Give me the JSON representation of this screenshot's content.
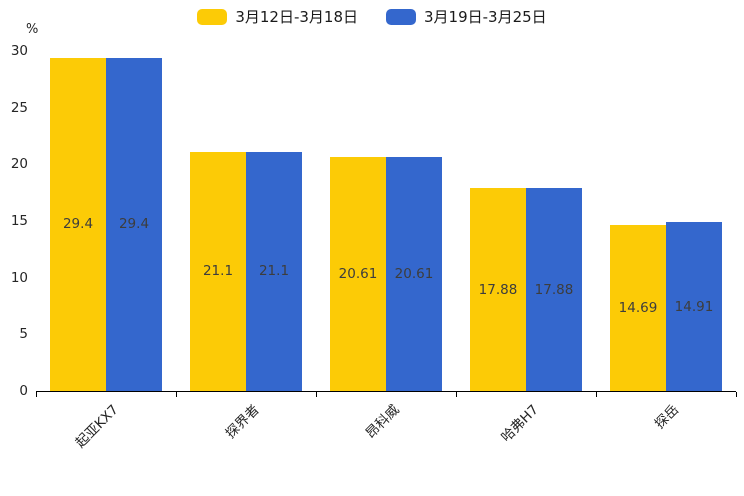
{
  "chart_data": {
    "type": "bar",
    "title": "",
    "categories": [
      "起亚KX7",
      "探界者",
      "昂科威",
      "哈弗H7",
      "探岳"
    ],
    "series": [
      {
        "name": "3月12日-3月18日",
        "color": "#fccb06",
        "values": [
          29.4,
          21.1,
          20.61,
          17.88,
          14.69
        ]
      },
      {
        "name": "3月19日-3月25日",
        "color": "#3467cd",
        "values": [
          29.4,
          21.1,
          20.61,
          17.88,
          14.91
        ]
      }
    ],
    "value_labels": [
      "29.4",
      "21.1",
      "20.61",
      "17.88",
      "14.69",
      "29.4",
      "21.1",
      "20.61",
      "17.88",
      "14.91"
    ],
    "ylabel": "%",
    "ylim": [
      0,
      30
    ],
    "yticks": [
      0,
      5,
      10,
      15,
      20,
      25,
      30
    ],
    "legend_position": "top-center",
    "grid": false,
    "bar_value_labels_inside": true,
    "x_labels_rotation_deg": 45
  }
}
